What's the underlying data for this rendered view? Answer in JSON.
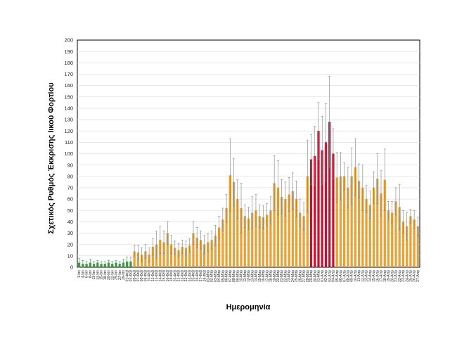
{
  "chart_data": {
    "type": "bar",
    "title": "",
    "xlabel": "Ημερομηνία",
    "ylabel": "Σχετικός Ρυθμός Έκκρισης Ιικού Φορτίου",
    "ylim": [
      0,
      200
    ],
    "yticks": [
      0,
      10,
      20,
      30,
      40,
      50,
      60,
      70,
      80,
      90,
      100,
      110,
      120,
      130,
      140,
      150,
      160,
      170,
      180,
      190,
      200
    ],
    "grid": true,
    "categories": [
      "1-Ιαν",
      "4-Ιαν",
      "6-Ιαν",
      "8-Ιαν",
      "11-Ιαν",
      "13-Ιαν",
      "15-Ιαν",
      "18-Ιαν",
      "20-Ιαν",
      "22-Ιαν",
      "25-Ιαν",
      "27-Ιαν",
      "29-Ιαν",
      "01-Φεβ",
      "03-Φεβ",
      "05-Φεβ",
      "07-Φεβ",
      "08-Φεβ",
      "09-Φεβ",
      "10-Φεβ",
      "11-Φεβ",
      "12-Φεβ",
      "14-Φεβ",
      "15-Φεβ",
      "16-Φεβ",
      "18-Φεβ",
      "20-Φεβ",
      "21-Φεβ",
      "22-Φεβ",
      "23-Φεβ",
      "24-Φεβ",
      "25-Φεβ",
      "26-Φεβ",
      "27-Φεβ",
      "28-Φεβ",
      "01-Μαρ",
      "02-Μαρ",
      "03-Μαρ",
      "04-Μαρ",
      "05-Μαρ",
      "06-Μαρ",
      "07-Μαρ",
      "08-Μαρ",
      "09-Μαρ",
      "10-Μαρ",
      "11-Μαρ",
      "12-Μαρ",
      "13-Μαρ",
      "14-Μαρ",
      "15-Μαρ",
      "16-Μαρ",
      "17-Μαρ",
      "18-Μαρ",
      "19-Μαρ",
      "20-Μαρ",
      "21-Μαρ",
      "22-Μαρ",
      "23-Μαρ",
      "24-Μαρ",
      "25-Μαρ",
      "26-Μαρ",
      "27-Μαρ",
      "28-Μαρ",
      "29-Μαρ",
      "30-Μαρ",
      "31-Μαρ",
      "01-Απρ",
      "02-Απρ",
      "03-Απρ",
      "04-Απρ",
      "05-Απρ",
      "06-Απρ",
      "07-Απρ",
      "08-Απρ",
      "09-Απρ",
      "10-Απρ",
      "11-Απρ",
      "12-Απρ",
      "13-Απρ",
      "14-Απρ",
      "15-Απρ",
      "16-Απρ",
      "17-Απρ",
      "18-Απρ",
      "19-Απρ",
      "20-Απρ",
      "21-Απρ",
      "22-Απρ",
      "23-Απρ",
      "24-Απρ",
      "25-Απρ",
      "26-Απρ",
      "27-Απρ"
    ],
    "values": [
      4,
      3,
      3,
      4,
      3,
      4,
      3,
      3,
      4,
      3,
      4,
      3,
      4,
      5,
      5,
      14,
      13,
      11,
      14,
      11,
      18,
      20,
      24,
      22,
      30,
      20,
      17,
      15,
      18,
      17,
      19,
      30,
      26,
      24,
      20,
      22,
      24,
      28,
      35,
      42,
      52,
      81,
      75,
      60,
      52,
      45,
      43,
      48,
      50,
      45,
      44,
      46,
      50,
      74,
      70,
      62,
      60,
      64,
      67,
      60,
      48,
      45,
      80,
      95,
      98,
      120,
      103,
      110,
      128,
      100,
      79,
      80,
      80,
      70,
      80,
      88,
      76,
      70,
      60,
      55,
      70,
      78,
      65,
      77,
      50,
      48,
      58,
      53,
      40,
      36,
      45,
      42,
      36
    ],
    "errors": [
      4,
      3,
      2,
      3,
      2,
      2,
      2,
      2,
      2,
      2,
      2,
      2,
      3,
      4,
      4,
      5,
      6,
      6,
      6,
      6,
      7,
      12,
      12,
      10,
      10,
      8,
      6,
      6,
      6,
      6,
      6,
      10,
      9,
      8,
      8,
      8,
      8,
      9,
      10,
      10,
      12,
      32,
      21,
      17,
      22,
      10,
      10,
      14,
      14,
      10,
      10,
      10,
      12,
      24,
      24,
      15,
      15,
      15,
      16,
      16,
      12,
      12,
      32,
      22,
      26,
      25,
      30,
      34,
      40,
      22,
      22,
      21,
      12,
      18,
      25,
      25,
      15,
      20,
      12,
      12,
      14,
      22,
      20,
      27,
      8,
      10,
      12,
      20,
      10,
      12,
      6,
      8,
      8
    ],
    "colors": [
      "#3a9a43",
      "#3a9a43",
      "#3a9a43",
      "#3a9a43",
      "#3a9a43",
      "#3a9a43",
      "#3a9a43",
      "#3a9a43",
      "#3a9a43",
      "#3a9a43",
      "#3a9a43",
      "#3a9a43",
      "#3a9a43",
      "#3a9a43",
      "#3a9a43",
      "#e8a134",
      "#e8a134",
      "#e8a134",
      "#e8a134",
      "#e8a134",
      "#e8a134",
      "#e8a134",
      "#e8a134",
      "#e8a134",
      "#e8a134",
      "#e8a134",
      "#e8a134",
      "#e8a134",
      "#e8a134",
      "#e8a134",
      "#e8a134",
      "#e8a134",
      "#e8a134",
      "#e8a134",
      "#e8a134",
      "#e8a134",
      "#e8a134",
      "#e8a134",
      "#e8a134",
      "#e8a134",
      "#e8a134",
      "#e8a134",
      "#e8a134",
      "#e8a134",
      "#e8a134",
      "#e8a134",
      "#e8a134",
      "#e8a134",
      "#e8a134",
      "#e8a134",
      "#e8a134",
      "#e8a134",
      "#e8a134",
      "#e8a134",
      "#e8a134",
      "#e8a134",
      "#e8a134",
      "#e8a134",
      "#e8a134",
      "#e8a134",
      "#e8a134",
      "#e8a134",
      "#e8a134",
      "#c8102e",
      "#c8102e",
      "#c8102e",
      "#c8102e",
      "#c8102e",
      "#c8102e",
      "#c8102e",
      "#e8a134",
      "#e8a134",
      "#e8a134",
      "#e8a134",
      "#e8a134",
      "#e8a134",
      "#e8a134",
      "#e8a134",
      "#e8a134",
      "#e8a134",
      "#e8a134",
      "#e8a134",
      "#e8a134",
      "#e8a134",
      "#e8a134",
      "#e8a134",
      "#e8a134",
      "#e8a134",
      "#e8a134",
      "#e8a134",
      "#e8a134",
      "#e8a134",
      "#e8a134"
    ]
  }
}
